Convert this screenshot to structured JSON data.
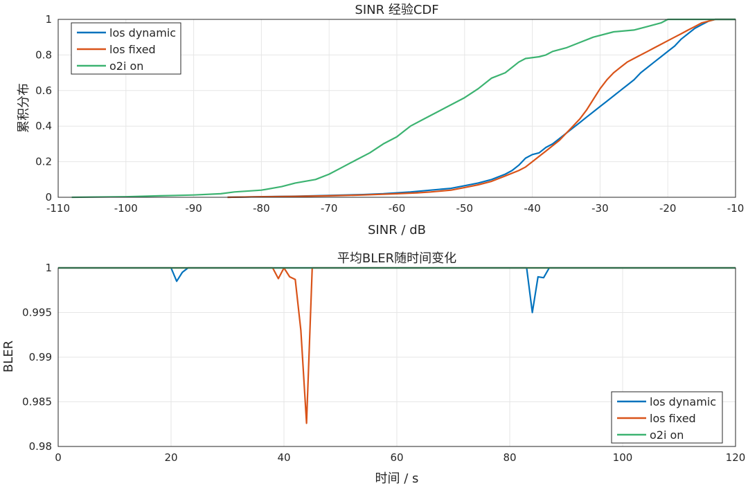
{
  "chart_data": [
    {
      "type": "line",
      "title": "SINR 经验CDF",
      "xlabel": "SINR / dB",
      "ylabel": "累积分布",
      "xlim": [
        -110,
        -10
      ],
      "ylim": [
        0,
        1
      ],
      "xticks": [
        "-110",
        "-100",
        "-90",
        "-80",
        "-70",
        "-60",
        "-50",
        "-40",
        "-30",
        "-20",
        "-10"
      ],
      "yticks": [
        "0",
        "0.2",
        "0.4",
        "0.6",
        "0.8",
        "1"
      ],
      "grid": true,
      "legend_position": "top-left",
      "series": [
        {
          "name": "los dynamic",
          "color": "#0072BD",
          "points": [
            [
              -85,
              0
            ],
            [
              -80,
              0.003
            ],
            [
              -75,
              0.006
            ],
            [
              -70,
              0.01
            ],
            [
              -65,
              0.015
            ],
            [
              -62,
              0.02
            ],
            [
              -60,
              0.025
            ],
            [
              -58,
              0.03
            ],
            [
              -55,
              0.04
            ],
            [
              -52,
              0.05
            ],
            [
              -50,
              0.065
            ],
            [
              -48,
              0.08
            ],
            [
              -46,
              0.1
            ],
            [
              -44,
              0.13
            ],
            [
              -43,
              0.15
            ],
            [
              -42,
              0.18
            ],
            [
              -41,
              0.22
            ],
            [
              -40,
              0.24
            ],
            [
              -39,
              0.25
            ],
            [
              -38,
              0.28
            ],
            [
              -37,
              0.3
            ],
            [
              -36,
              0.33
            ],
            [
              -35,
              0.36
            ],
            [
              -34,
              0.39
            ],
            [
              -33,
              0.42
            ],
            [
              -32,
              0.45
            ],
            [
              -31,
              0.48
            ],
            [
              -30,
              0.51
            ],
            [
              -29,
              0.54
            ],
            [
              -28,
              0.57
            ],
            [
              -27,
              0.6
            ],
            [
              -26,
              0.63
            ],
            [
              -25,
              0.66
            ],
            [
              -24,
              0.7
            ],
            [
              -23,
              0.73
            ],
            [
              -22,
              0.76
            ],
            [
              -21,
              0.79
            ],
            [
              -20,
              0.82
            ],
            [
              -19,
              0.85
            ],
            [
              -18,
              0.89
            ],
            [
              -17,
              0.92
            ],
            [
              -16,
              0.95
            ],
            [
              -15,
              0.97
            ],
            [
              -14,
              0.99
            ],
            [
              -13,
              1
            ],
            [
              -10,
              1
            ]
          ]
        },
        {
          "name": "los fixed",
          "color": "#D95319",
          "points": [
            [
              -85,
              0
            ],
            [
              -80,
              0.003
            ],
            [
              -75,
              0.005
            ],
            [
              -70,
              0.008
            ],
            [
              -65,
              0.013
            ],
            [
              -60,
              0.02
            ],
            [
              -57,
              0.025
            ],
            [
              -55,
              0.03
            ],
            [
              -52,
              0.04
            ],
            [
              -50,
              0.055
            ],
            [
              -48,
              0.07
            ],
            [
              -46,
              0.09
            ],
            [
              -44,
              0.12
            ],
            [
              -42,
              0.15
            ],
            [
              -41,
              0.17
            ],
            [
              -40,
              0.2
            ],
            [
              -39,
              0.23
            ],
            [
              -38,
              0.26
            ],
            [
              -37,
              0.29
            ],
            [
              -36,
              0.32
            ],
            [
              -35,
              0.36
            ],
            [
              -34,
              0.4
            ],
            [
              -33,
              0.44
            ],
            [
              -32,
              0.49
            ],
            [
              -31,
              0.55
            ],
            [
              -30,
              0.61
            ],
            [
              -29,
              0.66
            ],
            [
              -28,
              0.7
            ],
            [
              -27,
              0.73
            ],
            [
              -26,
              0.76
            ],
            [
              -25,
              0.78
            ],
            [
              -24,
              0.8
            ],
            [
              -23,
              0.82
            ],
            [
              -22,
              0.84
            ],
            [
              -21,
              0.86
            ],
            [
              -20,
              0.88
            ],
            [
              -19,
              0.9
            ],
            [
              -18,
              0.92
            ],
            [
              -17,
              0.94
            ],
            [
              -16,
              0.96
            ],
            [
              -15,
              0.98
            ],
            [
              -14,
              0.99
            ],
            [
              -13,
              1
            ],
            [
              -10,
              1
            ]
          ]
        },
        {
          "name": "o2i on",
          "color": "#3CB371",
          "points": [
            [
              -108,
              0
            ],
            [
              -100,
              0.003
            ],
            [
              -95,
              0.008
            ],
            [
              -90,
              0.013
            ],
            [
              -86,
              0.02
            ],
            [
              -84,
              0.03
            ],
            [
              -80,
              0.04
            ],
            [
              -77,
              0.06
            ],
            [
              -75,
              0.08
            ],
            [
              -72,
              0.1
            ],
            [
              -70,
              0.13
            ],
            [
              -68,
              0.17
            ],
            [
              -66,
              0.21
            ],
            [
              -64,
              0.25
            ],
            [
              -62,
              0.3
            ],
            [
              -60,
              0.34
            ],
            [
              -59,
              0.37
            ],
            [
              -58,
              0.4
            ],
            [
              -56,
              0.44
            ],
            [
              -54,
              0.48
            ],
            [
              -52,
              0.52
            ],
            [
              -50,
              0.56
            ],
            [
              -48,
              0.61
            ],
            [
              -47,
              0.64
            ],
            [
              -46,
              0.67
            ],
            [
              -44,
              0.7
            ],
            [
              -43,
              0.73
            ],
            [
              -42,
              0.76
            ],
            [
              -41,
              0.78
            ],
            [
              -39,
              0.79
            ],
            [
              -38,
              0.8
            ],
            [
              -37,
              0.82
            ],
            [
              -35,
              0.84
            ],
            [
              -33,
              0.87
            ],
            [
              -31,
              0.9
            ],
            [
              -28,
              0.93
            ],
            [
              -25,
              0.94
            ],
            [
              -23,
              0.96
            ],
            [
              -21,
              0.98
            ],
            [
              -20,
              1
            ],
            [
              -10,
              1
            ]
          ]
        }
      ]
    },
    {
      "type": "line",
      "title": "平均BLER随时间变化",
      "xlabel": "时间 / s",
      "ylabel": "BLER",
      "xlim": [
        0,
        120
      ],
      "ylim": [
        0.98,
        1
      ],
      "xticks": [
        "0",
        "20",
        "40",
        "60",
        "80",
        "100",
        "120"
      ],
      "yticks": [
        "0.98",
        "0.985",
        "0.99",
        "0.995",
        "1"
      ],
      "grid": true,
      "legend_position": "bottom-right",
      "series": [
        {
          "name": "los dynamic",
          "color": "#0072BD",
          "points": [
            [
              0,
              1
            ],
            [
              20,
              1
            ],
            [
              21,
              0.9985
            ],
            [
              22,
              0.9995
            ],
            [
              23,
              1
            ],
            [
              83,
              1
            ],
            [
              84,
              0.995
            ],
            [
              85,
              0.999
            ],
            [
              86,
              0.9989
            ],
            [
              87,
              1
            ],
            [
              120,
              1
            ]
          ]
        },
        {
          "name": "los fixed",
          "color": "#D95319",
          "points": [
            [
              0,
              1
            ],
            [
              38,
              1
            ],
            [
              39,
              0.9988
            ],
            [
              40,
              1
            ],
            [
              41,
              0.999
            ],
            [
              42,
              0.9987
            ],
            [
              43,
              0.993
            ],
            [
              44,
              0.9826
            ],
            [
              45,
              1
            ],
            [
              120,
              1
            ]
          ]
        },
        {
          "name": "o2i on",
          "color": "#3CB371",
          "points": [
            [
              0,
              1
            ],
            [
              120,
              1
            ]
          ]
        }
      ]
    }
  ]
}
